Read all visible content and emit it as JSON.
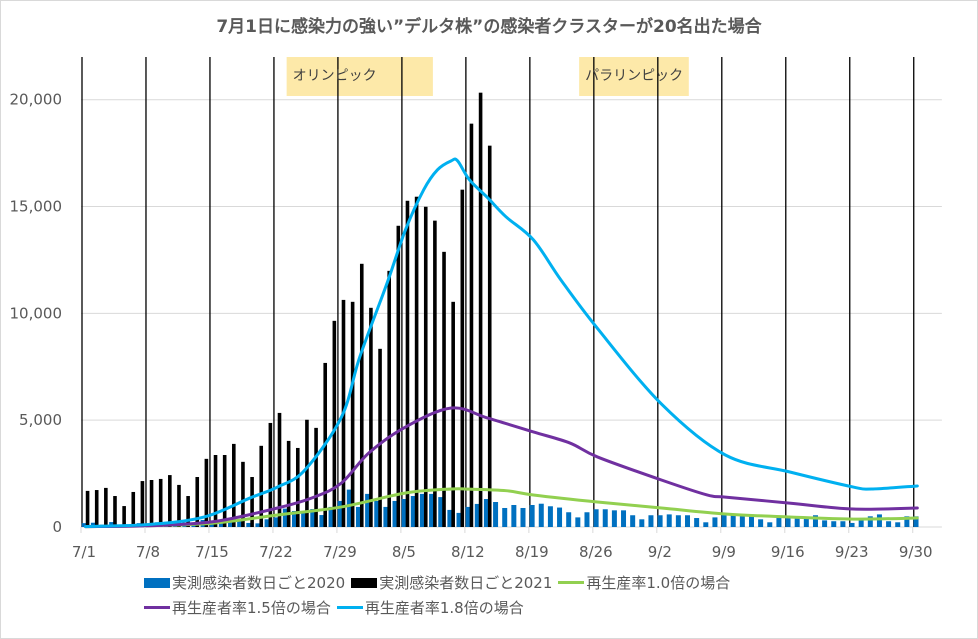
{
  "chart_data": {
    "type": "bar",
    "title": "7月1日に感染力の強い”デルタ株”の感染者クラスターが20名出た場合",
    "xlabel": "",
    "ylabel": "",
    "ylim": [
      0,
      22000
    ],
    "yticks": [
      0,
      5000,
      10000,
      15000,
      20000
    ],
    "ytick_labels": [
      "0",
      "5,000",
      "10,000",
      "15,000",
      "20,000"
    ],
    "grid": true,
    "legend_position": "bottom",
    "start_date": "7/1",
    "num_days": 92,
    "xtick_labels": [
      "7/1",
      "7/8",
      "7/15",
      "7/22",
      "7/29",
      "8/5",
      "8/12",
      "8/19",
      "8/26",
      "9/2",
      "9/9",
      "9/16",
      "9/23",
      "9/30"
    ],
    "xtick_day_index": [
      0,
      7,
      14,
      21,
      28,
      35,
      42,
      49,
      56,
      63,
      70,
      77,
      84,
      91
    ],
    "annotations": [
      {
        "text": "オリンピック",
        "day_start": 22.5,
        "day_end": 38.5,
        "color": "#fde9a9"
      },
      {
        "text": "パラリンピック",
        "day_start": 54.5,
        "day_end": 66.5,
        "color": "#fde9a9"
      }
    ],
    "series": [
      {
        "name": "実測感染者数日ごと2020",
        "kind": "bar",
        "color": "#0070c0",
        "values": [
          180,
          200,
          110,
          230,
          110,
          110,
          180,
          150,
          220,
          240,
          210,
          210,
          120,
          330,
          260,
          290,
          290,
          280,
          190,
          170,
          360,
          450,
          860,
          750,
          750,
          840,
          560,
          940,
          1220,
          1750,
          940,
          1550,
          1220,
          940,
          1220,
          1310,
          1450,
          1550,
          1550,
          1400,
          800,
          660,
          940,
          1080,
          1310,
          1170,
          890,
          1030,
          890,
          1030,
          1090,
          970,
          910,
          690,
          450,
          690,
          830,
          830,
          780,
          780,
          550,
          360,
          550,
          550,
          590,
          550,
          550,
          420,
          220,
          450,
          580,
          590,
          590,
          590,
          360,
          220,
          420,
          420,
          420,
          420,
          550,
          310,
          270,
          270,
          190,
          420,
          500,
          590,
          270,
          220,
          500,
          500
        ]
      },
      {
        "name": "実測感染者数日ごと2021",
        "kind": "bar",
        "color": "#000000",
        "values": [
          1690,
          1730,
          1830,
          1450,
          980,
          1640,
          2150,
          2200,
          2250,
          2430,
          1970,
          1450,
          2340,
          3190,
          3370,
          3370,
          3890,
          3050,
          2340,
          3800,
          4870,
          5340,
          4030,
          3700,
          5020,
          4640,
          7680,
          9650,
          10630,
          10540,
          12320,
          10260,
          8340,
          11990,
          14100,
          15270,
          15460,
          14990,
          14340,
          12880,
          10540,
          15790,
          18880,
          20330,
          17850
        ]
      },
      {
        "name": "再生産率1.0倍の場合",
        "kind": "line",
        "color": "#92d050",
        "points": [
          [
            0,
            20
          ],
          [
            7,
            60
          ],
          [
            14,
            180
          ],
          [
            21,
            560
          ],
          [
            28,
            940
          ],
          [
            35,
            1590
          ],
          [
            40,
            1780
          ],
          [
            42,
            1770
          ],
          [
            46,
            1700
          ],
          [
            49,
            1500
          ],
          [
            56,
            1170
          ],
          [
            63,
            890
          ],
          [
            70,
            610
          ],
          [
            77,
            470
          ],
          [
            84,
            370
          ],
          [
            91,
            420
          ]
        ]
      },
      {
        "name": "再生産者率1.5倍の場合",
        "kind": "line",
        "color": "#7030a0",
        "points": [
          [
            0,
            20
          ],
          [
            7,
            60
          ],
          [
            14,
            250
          ],
          [
            21,
            890
          ],
          [
            25,
            1400
          ],
          [
            28,
            2060
          ],
          [
            31,
            3470
          ],
          [
            35,
            4680
          ],
          [
            40,
            5570
          ],
          [
            44,
            5100
          ],
          [
            49,
            4450
          ],
          [
            53,
            3930
          ],
          [
            56,
            3280
          ],
          [
            63,
            2200
          ],
          [
            68,
            1500
          ],
          [
            70,
            1400
          ],
          [
            77,
            1120
          ],
          [
            84,
            840
          ],
          [
            91,
            890
          ]
        ]
      },
      {
        "name": "再生産者率1.8倍の場合",
        "kind": "line",
        "color": "#00b0f0",
        "points": [
          [
            0,
            20
          ],
          [
            7,
            120
          ],
          [
            13,
            470
          ],
          [
            18,
            1360
          ],
          [
            21,
            1870
          ],
          [
            24,
            2670
          ],
          [
            28,
            5150
          ],
          [
            30,
            7960
          ],
          [
            33,
            11430
          ],
          [
            35,
            13910
          ],
          [
            37,
            15790
          ],
          [
            38.5,
            16720
          ],
          [
            40,
            17140
          ],
          [
            40.7,
            17140
          ],
          [
            42,
            16250
          ],
          [
            44,
            15410
          ],
          [
            46,
            14520
          ],
          [
            49,
            13440
          ],
          [
            52,
            11570
          ],
          [
            56,
            9300
          ],
          [
            63,
            5760
          ],
          [
            70,
            3370
          ],
          [
            77,
            2580
          ],
          [
            84,
            1870
          ],
          [
            86,
            1780
          ],
          [
            91,
            1920
          ]
        ]
      }
    ]
  },
  "legend": {
    "row1": [
      {
        "label": "実測感染者数日ごと2020",
        "swatch": "box",
        "color": "#0070c0"
      },
      {
        "label": "実測感染者数日ごと2021",
        "swatch": "box",
        "color": "#000000"
      },
      {
        "label": "再生産率1.0倍の場合",
        "swatch": "line",
        "color": "#92d050"
      }
    ],
    "row2": [
      {
        "label": "再生産者率1.5倍の場合",
        "swatch": "line",
        "color": "#7030a0"
      },
      {
        "label": "再生産者率1.8倍の場合",
        "swatch": "line",
        "color": "#00b0f0"
      }
    ]
  }
}
